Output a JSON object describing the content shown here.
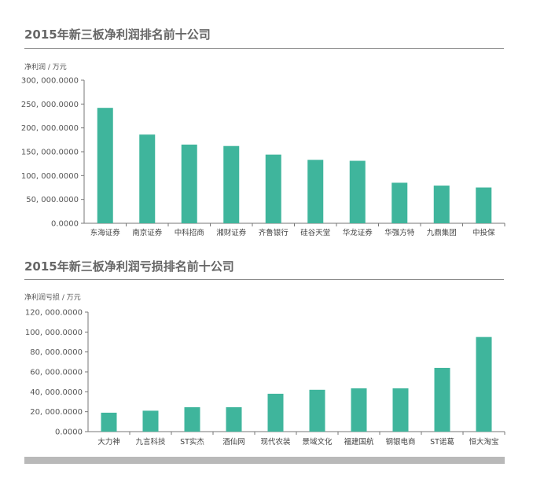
{
  "chart_data": [
    {
      "type": "bar",
      "title": "2015年新三板净利润排名前十公司",
      "ylabel": "净利润 / 万元",
      "xlabel": "",
      "ylim": [
        0,
        300000
      ],
      "yticks": [
        0,
        50000,
        100000,
        150000,
        200000,
        250000,
        300000
      ],
      "ytick_labels": [
        "0.0000",
        "50, 000.0000",
        "100, 000.0000",
        "150, 000.0000",
        "200, 000.0000",
        "250, 000.0000",
        "300, 000.0000"
      ],
      "categories": [
        "东海证券",
        "南京证券",
        "中科招商",
        "湘财证券",
        "齐鲁银行",
        "硅谷天堂",
        "华龙证券",
        "华强方特",
        "九鼎集团",
        "中投保"
      ],
      "values": [
        242000,
        186000,
        165000,
        162000,
        144000,
        133000,
        131000,
        85000,
        79000,
        75000
      ],
      "bar_color": "#3fb59c",
      "grid": false
    },
    {
      "type": "bar",
      "title": "2015年新三板净利润亏损排名前十公司",
      "ylabel": "净利润亏损 / 万元",
      "xlabel": "",
      "ylim": [
        0,
        120000
      ],
      "yticks": [
        0,
        20000,
        40000,
        60000,
        80000,
        100000,
        120000
      ],
      "ytick_labels": [
        "0.0000",
        "20, 000.0000",
        "40, 000.0000",
        "60, 000.0000",
        "80, 000.0000",
        "100, 000.0000",
        "120, 000.0000"
      ],
      "categories": [
        "大力神",
        "九言科技",
        "ST实杰",
        "酒仙网",
        "现代农装",
        "景域文化",
        "福建国航",
        "钢银电商",
        "ST诺葛",
        "恒大淘宝"
      ],
      "values": [
        19000,
        21000,
        24500,
        24500,
        38000,
        42000,
        43500,
        43500,
        64000,
        95000
      ],
      "bar_color": "#3fb59c",
      "grid": false
    }
  ]
}
